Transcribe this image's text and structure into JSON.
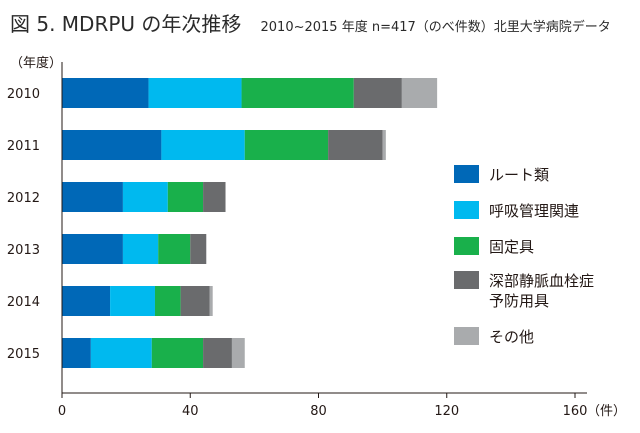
{
  "figure": {
    "title": "図 5. MDRPU の年次推移",
    "subtitle": "2010~2015 年度 n=417（のべ件数）北里大学病院データ"
  },
  "chart_data": {
    "type": "bar",
    "orientation": "horizontal",
    "stacked": true,
    "title": "図 5. MDRPU の年次推移",
    "subtitle": "2010~2015 年度 n=417（のべ件数）北里大学病院データ",
    "ylabel": "（年度）",
    "xlabel": "（件）",
    "xlim": [
      0,
      160
    ],
    "xticks": [
      0,
      40,
      80,
      120,
      160
    ],
    "categories": [
      "2010",
      "2011",
      "2012",
      "2013",
      "2014",
      "2015"
    ],
    "series": [
      {
        "name": "ルート類",
        "color": "#0068b7",
        "values": [
          27,
          31,
          19,
          19,
          15,
          9
        ]
      },
      {
        "name": "呼吸管理関連",
        "color": "#00b9ef",
        "values": [
          29,
          26,
          14,
          11,
          14,
          19
        ]
      },
      {
        "name": "固定具",
        "color": "#19b04b",
        "values": [
          35,
          26,
          11,
          10,
          8,
          16
        ]
      },
      {
        "name": "深部静脈血栓症予防用具",
        "color": "#6a6b6d",
        "values": [
          15,
          17,
          7,
          5,
          9,
          9
        ]
      },
      {
        "name": "その他",
        "color": "#a9abad",
        "values": [
          11,
          1,
          0,
          0,
          1,
          4
        ]
      }
    ],
    "legend": {
      "position": "right",
      "items": [
        {
          "lines": [
            "ルート類"
          ],
          "color": "#0068b7"
        },
        {
          "lines": [
            "呼吸管理関連"
          ],
          "color": "#00b9ef"
        },
        {
          "lines": [
            "固定具"
          ],
          "color": "#19b04b"
        },
        {
          "lines": [
            "深部静脈血栓症",
            "予防用具"
          ],
          "color": "#6a6b6d"
        },
        {
          "lines": [
            "その他"
          ],
          "color": "#a9abad"
        }
      ]
    }
  }
}
